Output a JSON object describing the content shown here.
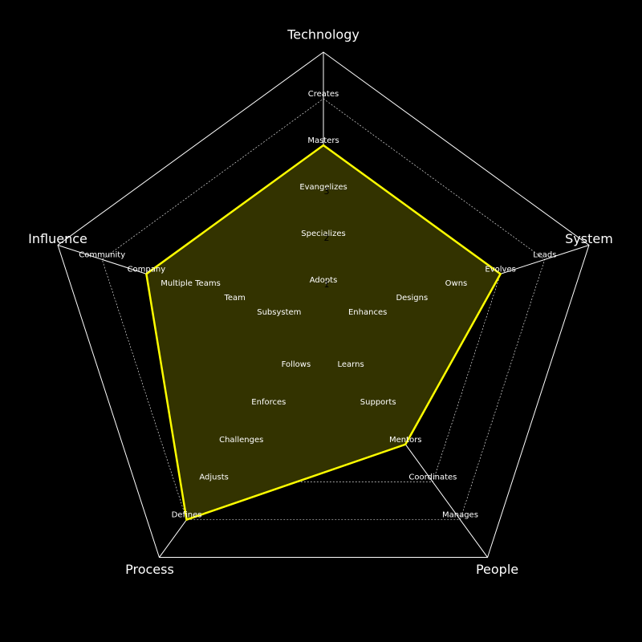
{
  "chart_data": {
    "type": "radar",
    "axes": [
      {
        "name": "Technology",
        "levels": [
          "Adopts",
          "Specializes",
          "Evangelizes",
          "Masters",
          "Creates"
        ]
      },
      {
        "name": "System",
        "levels": [
          "Enhances",
          "Designs",
          "Owns",
          "Evolves",
          "Leads"
        ]
      },
      {
        "name": "People",
        "levels": [
          "Learns",
          "Supports",
          "Mentors",
          "Coordinates",
          "Manages"
        ]
      },
      {
        "name": "Process",
        "levels": [
          "Follows",
          "Enforces",
          "Challenges",
          "Adjusts",
          "Defines"
        ]
      },
      {
        "name": "Influence",
        "levels": [
          "Subsystem",
          "Team",
          "Multiple Teams",
          "Company",
          "Community"
        ]
      }
    ],
    "rlim": [
      0,
      6
    ],
    "tick_labels": [
      "1",
      "2",
      "3"
    ],
    "series": [
      {
        "values": [
          4,
          4,
          3,
          5,
          4
        ],
        "color": "#ffff00",
        "fill": "#333300"
      }
    ],
    "background": "#000000",
    "grid_color": "#ffffff"
  }
}
